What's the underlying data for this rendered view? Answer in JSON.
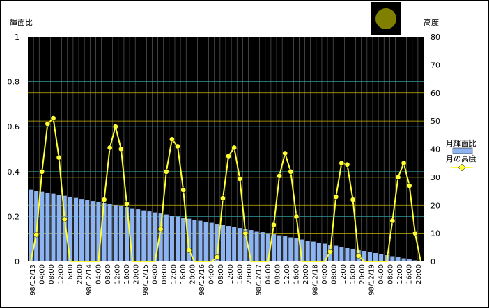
{
  "chart_data": {
    "type": "bar+line",
    "y_left_label": "輝面比",
    "y_right_label": "高度",
    "ylim_left": [
      0,
      1
    ],
    "ylim_right": [
      0,
      80
    ],
    "y_left_ticks": [
      "0",
      "0.2",
      "0.4",
      "0.6",
      "0.8",
      "1"
    ],
    "y_right_ticks": [
      "0",
      "10",
      "20",
      "30",
      "40",
      "50",
      "60",
      "70",
      "80"
    ],
    "legend": {
      "position": "right",
      "entries": [
        "月輝面比",
        "月の高度"
      ]
    },
    "x_labels": [
      "98/12/13",
      "04:00",
      "08:00",
      "12:00",
      "16:00",
      "20:00",
      "98/12/14",
      "04:00",
      "08:00",
      "12:00",
      "16:00",
      "20:00",
      "98/12/15",
      "04:00",
      "08:00",
      "12:00",
      "16:00",
      "20:00",
      "98/12/16",
      "04:00",
      "08:00",
      "12:00",
      "16:00",
      "20:00",
      "98/12/17",
      "04:00",
      "08:00",
      "12:00",
      "16:00",
      "20:00",
      "98/12/18",
      "04:00",
      "08:00",
      "12:00",
      "16:00",
      "20:00",
      "98/12/19",
      "04:00",
      "08:00",
      "12:00",
      "16:00",
      "20:00"
    ],
    "series": [
      {
        "name": "月輝面比",
        "kind": "bar",
        "axis": "left",
        "color": "#8DB4F0",
        "start": 0.32,
        "end": 0.0,
        "count": 70
      },
      {
        "name": "月の高度",
        "kind": "line",
        "axis": "right",
        "color": "#FFFF33",
        "points": [
          [
            0,
            0
          ],
          [
            1,
            9.5
          ],
          [
            2,
            32
          ],
          [
            3,
            49
          ],
          [
            4,
            51
          ],
          [
            5,
            37
          ],
          [
            6,
            15
          ],
          [
            7,
            0
          ],
          [
            12,
            0
          ],
          [
            13,
            22
          ],
          [
            14,
            40.5
          ],
          [
            15,
            48
          ],
          [
            16,
            40
          ],
          [
            17,
            20.5
          ],
          [
            18,
            0
          ],
          [
            22,
            0
          ],
          [
            23,
            11.5
          ],
          [
            24,
            32
          ],
          [
            25,
            43.5
          ],
          [
            26,
            41
          ],
          [
            27,
            25.5
          ],
          [
            28,
            4
          ],
          [
            29,
            0
          ],
          [
            32,
            0
          ],
          [
            33,
            1.5
          ],
          [
            34,
            22.5
          ],
          [
            35,
            37.5
          ],
          [
            36,
            40.5
          ],
          [
            37,
            29.5
          ],
          [
            38,
            10
          ],
          [
            39,
            0
          ],
          [
            42,
            0
          ],
          [
            43,
            13
          ],
          [
            44,
            30.5
          ],
          [
            45,
            38.5
          ],
          [
            46,
            32
          ],
          [
            47,
            16
          ],
          [
            48,
            0
          ],
          [
            52,
            0
          ],
          [
            53,
            3.5
          ],
          [
            54,
            23
          ],
          [
            55,
            35
          ],
          [
            56,
            34.5
          ],
          [
            57,
            22
          ],
          [
            58,
            2
          ],
          [
            59,
            0
          ],
          [
            63,
            0
          ],
          [
            64,
            14.5
          ],
          [
            65,
            30
          ],
          [
            66,
            35
          ],
          [
            67,
            27
          ],
          [
            68,
            10
          ],
          [
            69,
            0
          ]
        ]
      }
    ]
  },
  "moon_icon": "full-moon-icon"
}
